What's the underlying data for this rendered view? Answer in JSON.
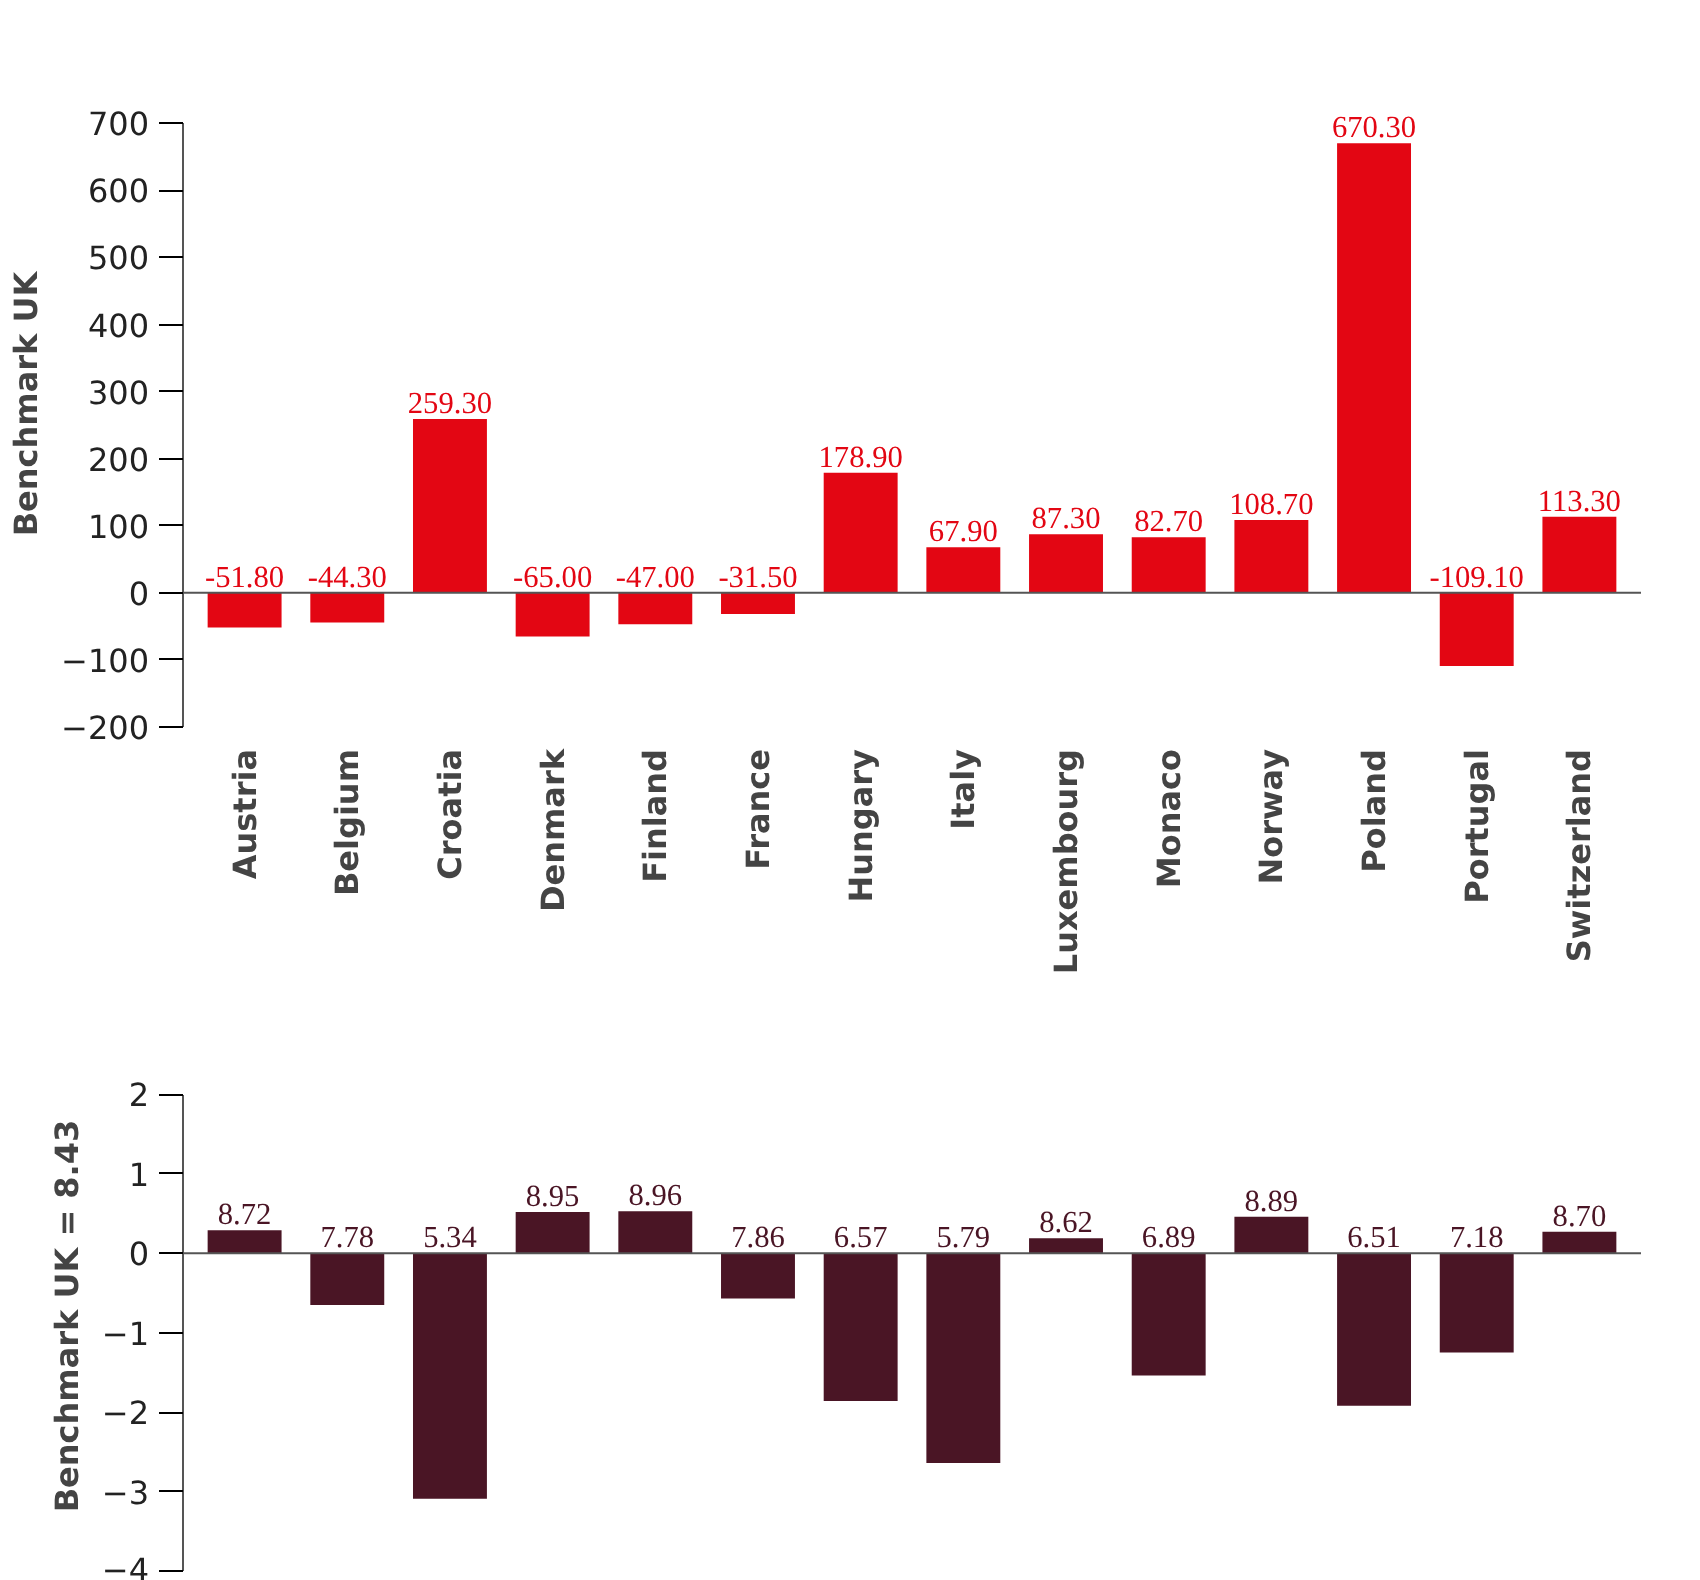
{
  "chart_data": [
    {
      "type": "bar",
      "ylabel": "Benchmark UK",
      "categories": [
        "Austria",
        "Belgium",
        "Croatia",
        "Denmark",
        "Finland",
        "France",
        "Hungary",
        "Italy",
        "Luxembourg",
        "Monaco",
        "Norway",
        "Poland",
        "Portugal",
        "Switzerland"
      ],
      "values": [
        -51.8,
        -44.3,
        259.3,
        -65.0,
        -47.0,
        -31.5,
        178.9,
        67.9,
        87.3,
        82.7,
        108.7,
        670.3,
        -109.1,
        113.3
      ],
      "value_labels": [
        "-51.80",
        "-44.30",
        "259.30",
        "-65.00",
        "-47.00",
        "-31.50",
        "178.90",
        "67.90",
        "87.30",
        "82.70",
        "108.70",
        "670.30",
        "-109.10",
        "113.30"
      ],
      "color": "#e30613",
      "ylim": [
        -200,
        700
      ],
      "yticks": [
        -200,
        -100,
        0,
        100,
        200,
        300,
        400,
        500,
        600,
        700
      ],
      "grid": false,
      "ref_lines": [
        {
          "axis": "y",
          "value": 0,
          "color": "#555555"
        }
      ]
    },
    {
      "type": "bar",
      "ylabel": "Benchmark UK = 8.43",
      "categories": [
        "Austria",
        "Belgium",
        "Croatia",
        "Denmark",
        "Finland",
        "France",
        "Hungary",
        "Italy",
        "Luxembourg",
        "Monaco",
        "Norway",
        "Poland",
        "Portugal",
        "Switzerland"
      ],
      "values": [
        0.29,
        -0.65,
        -3.09,
        0.52,
        0.53,
        -0.57,
        -1.86,
        -2.64,
        0.19,
        -1.54,
        0.46,
        -1.92,
        -1.25,
        0.27
      ],
      "annotations": [
        {
          "text": "8.72",
          "x": "Austria",
          "y": 0.29
        },
        {
          "text": "7.78",
          "x": "Belgium",
          "y": 0
        },
        {
          "text": "5.34",
          "x": "Croatia",
          "y": 0
        },
        {
          "text": "8.95",
          "x": "Denmark",
          "y": 0.52
        },
        {
          "text": "8.96",
          "x": "Finland",
          "y": 0.53
        },
        {
          "text": "7.86",
          "x": "France",
          "y": 0
        },
        {
          "text": "6.57",
          "x": "Hungary",
          "y": 0
        },
        {
          "text": "5.79",
          "x": "Italy",
          "y": 0
        },
        {
          "text": "8.62",
          "x": "Luxembourg",
          "y": 0.19
        },
        {
          "text": "6.89",
          "x": "Monaco",
          "y": 0
        },
        {
          "text": "8.89",
          "x": "Norway",
          "y": 0.46
        },
        {
          "text": "6.51",
          "x": "Poland",
          "y": 0
        },
        {
          "text": "7.18",
          "x": "Portugal",
          "y": 0
        },
        {
          "text": "8.70",
          "x": "Switzerland",
          "y": 0.27
        }
      ],
      "color": "#4a1525",
      "ylim": [
        -4,
        2
      ],
      "yticks": [
        -4,
        -3,
        -2,
        -1,
        0,
        1,
        2
      ],
      "tick_labels": "y",
      "grid": false,
      "ref_lines": [
        {
          "axis": "y",
          "value": 0,
          "color": "#555555"
        }
      ]
    }
  ]
}
